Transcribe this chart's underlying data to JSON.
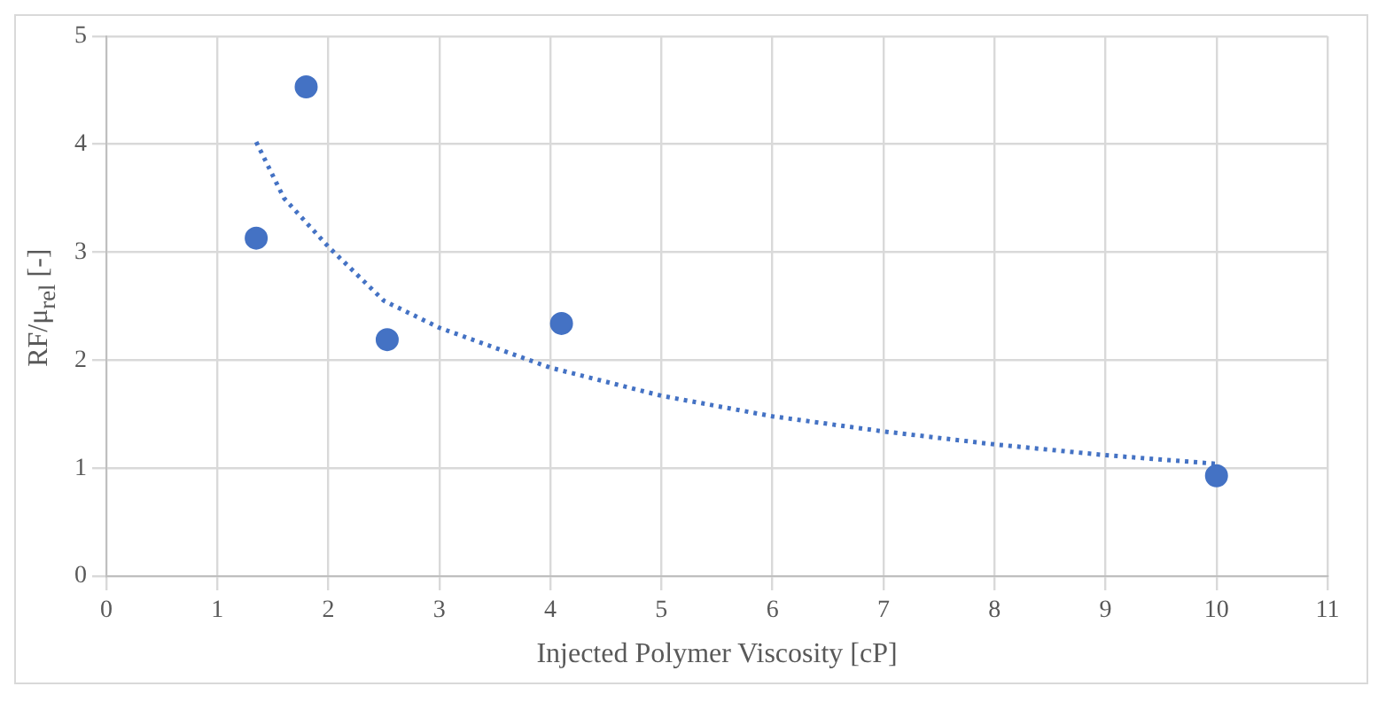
{
  "chart_data": {
    "type": "scatter",
    "xlabel": "Injected Polymer Viscosity [cP]",
    "ylabel": "RF/μ$_{rel}$ [-]",
    "xlim": [
      0,
      11
    ],
    "xticks": [
      0,
      1,
      2,
      3,
      4,
      5,
      6,
      7,
      8,
      9,
      10,
      11
    ],
    "ylim": [
      0,
      5
    ],
    "yticks": [
      0,
      1,
      2,
      3,
      4,
      5
    ],
    "grid": true,
    "legend": false,
    "marker": "circle",
    "series": [
      {
        "color": "#4472c4",
        "x": [
          1.35,
          1.8,
          2.53,
          4.1,
          10
        ],
        "values": [
          3.13,
          4.53,
          2.19,
          2.34,
          0.93
        ]
      },
      {
        "type": "line",
        "color": "#4472c4",
        "line_style": "dotted",
        "marker": "none",
        "x": [
          1.35,
          1.6,
          2,
          2.5,
          3,
          4,
          5,
          6,
          7,
          8,
          9,
          10
        ],
        "values": [
          4.02,
          3.5,
          3.05,
          2.55,
          2.3,
          1.93,
          1.67,
          1.48,
          1.34,
          1.22,
          1.12,
          1.04
        ]
      }
    ]
  }
}
